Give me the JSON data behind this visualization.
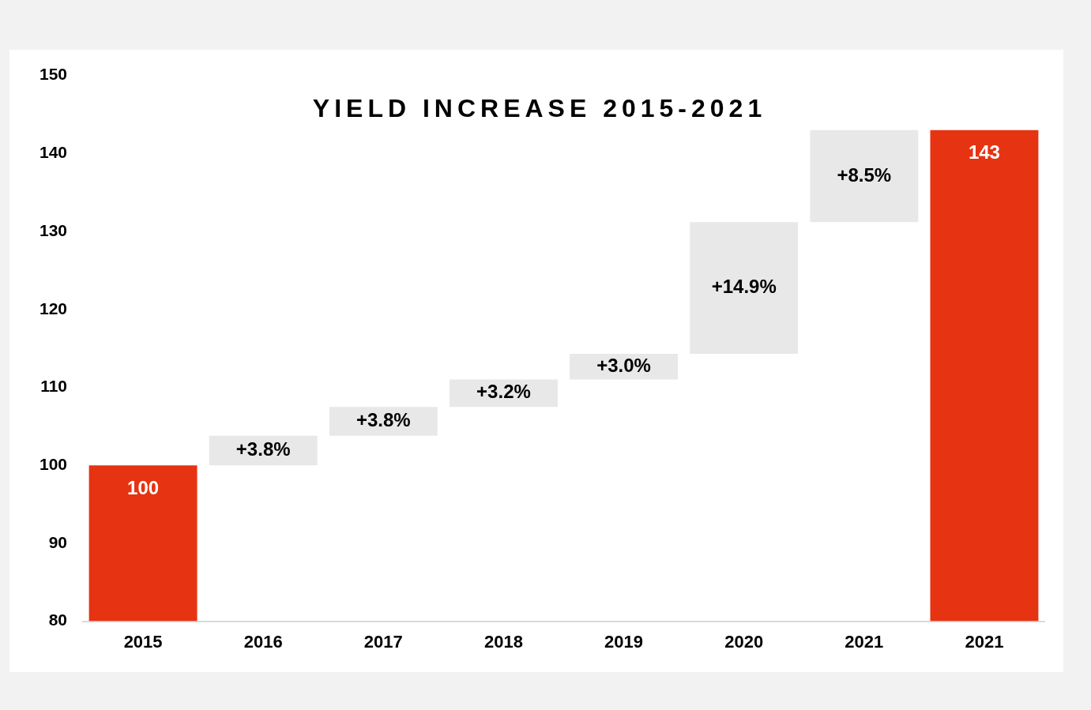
{
  "chart_data": {
    "type": "bar",
    "title": "YIELD INCREASE 2015-2021",
    "categories": [
      "2015",
      "2016",
      "2017",
      "2018",
      "2019",
      "2020",
      "2021",
      "2021"
    ],
    "base": [
      80,
      100,
      103.8,
      107.5,
      111.0,
      114.3,
      131.2,
      80
    ],
    "values": [
      20,
      3.8,
      3.7,
      3.5,
      3.3,
      16.9,
      11.8,
      63
    ],
    "colors": [
      "#e63312",
      "#e8e8e8",
      "#e8e8e8",
      "#e8e8e8",
      "#e8e8e8",
      "#e8e8e8",
      "#e8e8e8",
      "#e63312"
    ],
    "value_labels": [
      "100",
      null,
      null,
      null,
      null,
      null,
      null,
      "143"
    ],
    "annotations": [
      "+3.8%",
      "+3.8%",
      "+3.2%",
      "+3.0%",
      "+14.9%",
      "+8.5%"
    ],
    "ylim": [
      80,
      150
    ],
    "yticks": [
      80,
      90,
      100,
      110,
      120,
      130,
      140,
      150
    ]
  }
}
